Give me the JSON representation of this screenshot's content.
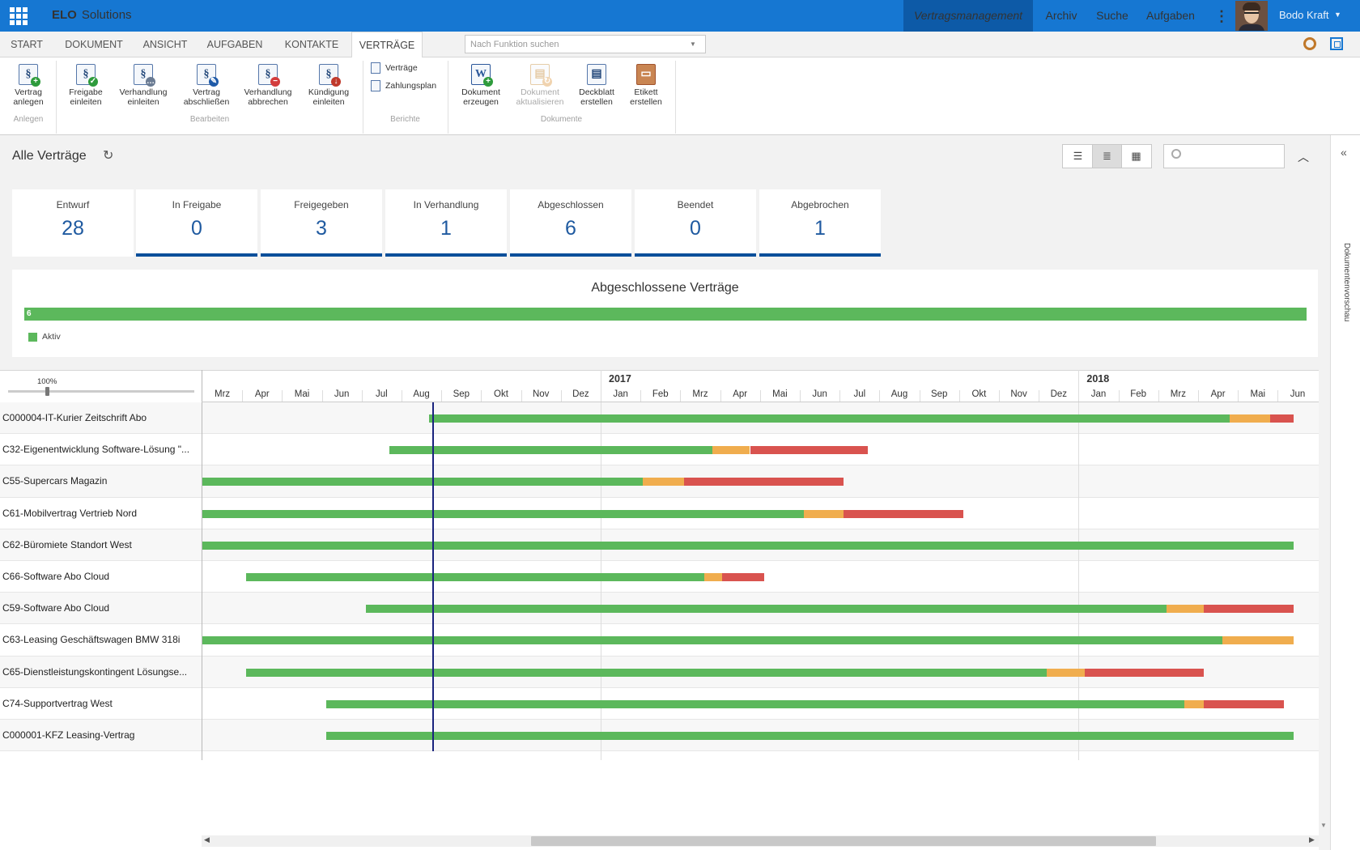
{
  "app": {
    "brand_bold": "ELO",
    "brand_rest": "Solutions",
    "nav": [
      "Vertragsmanagement",
      "Archiv",
      "Suche",
      "Aufgaben"
    ],
    "user": "Bodo Kraft"
  },
  "tabs": [
    "START",
    "DOKUMENT",
    "ANSICHT",
    "AUFGABEN",
    "KONTAKTE",
    "VERTRÄGE"
  ],
  "active_tab": "VERTRÄGE",
  "function_search_placeholder": "Nach Funktion suchen",
  "ribbon": {
    "buttons": [
      {
        "l1": "Vertrag",
        "l2": "anlegen",
        "icon": "contract-add-icon"
      },
      {
        "l1": "Freigabe",
        "l2": "einleiten",
        "icon": "approval-icon"
      },
      {
        "l1": "Verhandlung",
        "l2": "einleiten",
        "icon": "negotiation-icon"
      },
      {
        "l1": "Vertrag",
        "l2": "abschließen",
        "icon": "contract-sign-icon"
      },
      {
        "l1": "Verhandlung",
        "l2": "abbrechen",
        "icon": "negotiation-cancel-icon"
      },
      {
        "l1": "Kündigung",
        "l2": "einleiten",
        "icon": "termination-icon"
      },
      {
        "l1": "Dokument",
        "l2": "erzeugen",
        "icon": "word-document-icon"
      },
      {
        "l1": "Dokument",
        "l2": "aktualisieren",
        "icon": "document-refresh-icon",
        "disabled": true
      },
      {
        "l1": "Deckblatt",
        "l2": "erstellen",
        "icon": "cover-sheet-icon"
      },
      {
        "l1": "Etikett",
        "l2": "erstellen",
        "icon": "label-icon"
      }
    ],
    "reports": [
      "Verträge",
      "Zahlungsplan"
    ],
    "groups": [
      "Anlegen",
      "Bearbeiten",
      "Berichte",
      "Dokumente"
    ]
  },
  "page_title": "Alle Verträge",
  "status_cards": [
    {
      "label": "Entwurf",
      "count": "28"
    },
    {
      "label": "In Freigabe",
      "count": "0"
    },
    {
      "label": "Freigegeben",
      "count": "3"
    },
    {
      "label": "In Verhandlung",
      "count": "1"
    },
    {
      "label": "Abgeschlossen",
      "count": "6"
    },
    {
      "label": "Beendet",
      "count": "0"
    },
    {
      "label": "Abgebrochen",
      "count": "1"
    }
  ],
  "summary": {
    "title": "Abgeschlossene Verträge",
    "value": "6",
    "legend": "Aktiv",
    "color": "#5cb85c"
  },
  "side_panel_label": "Dokumentenvorschau",
  "gantt": {
    "zoom": "100%",
    "years": [
      "2017",
      "2018"
    ],
    "months": [
      "Mrz",
      "Apr",
      "Mai",
      "Jun",
      "Jul",
      "Aug",
      "Sep",
      "Okt",
      "Nov",
      "Dez",
      "Jan",
      "Feb",
      "Mrz",
      "Apr",
      "Mai",
      "Jun",
      "Jul",
      "Aug",
      "Sep",
      "Okt",
      "Nov",
      "Dez",
      "Jan",
      "Feb",
      "Mrz",
      "Apr",
      "Mai",
      "Jun"
    ],
    "colors": {
      "active": "#5cb85c",
      "warning": "#f0ad4e",
      "expired": "#d9534f"
    },
    "rows": [
      {
        "name": "C000004-IT-Kurier Zeitschrift Abo",
        "start": 5.7,
        "warn": 25.8,
        "end": 26.8,
        "finish": 27.6
      },
      {
        "name": "C32-Eigenentwicklung Software-Lösung \"...",
        "start": 4.7,
        "warn": 12.8,
        "end": 13.75,
        "finish": 16.7
      },
      {
        "name": "C55-Supercars Magazin",
        "start": 0,
        "warn": 11.05,
        "end": 12.1,
        "finish": 16.1
      },
      {
        "name": "C61-Mobilvertrag Vertrieb Nord",
        "start": 0,
        "warn": 15.1,
        "end": 16.1,
        "finish": 19.1
      },
      {
        "name": "C62-Büromiete Standort West",
        "start": 0,
        "warn": 27.6,
        "end": 27.6,
        "finish": 27.6
      },
      {
        "name": "C66-Software Abo Cloud",
        "start": 1.1,
        "warn": 12.6,
        "end": 13.05,
        "finish": 14.1
      },
      {
        "name": "C59-Software Abo Cloud",
        "start": 4.1,
        "warn": 24.2,
        "end": 25.15,
        "finish": 27.6
      },
      {
        "name": "C63-Leasing Geschäftswagen BMW 318i",
        "start": 0,
        "warn": 25.6,
        "end": 27.6,
        "finish": 27.6
      },
      {
        "name": "C65-Dienstleistungskontingent Lösungse...",
        "start": 1.1,
        "warn": 21.2,
        "end": 22.15,
        "finish": 25.15
      },
      {
        "name": "C74-Supportvertrag West",
        "start": 3.1,
        "warn": 24.65,
        "end": 25.15,
        "finish": 27.15
      },
      {
        "name": "C000001-KFZ Leasing-Vertrag",
        "start": 3.1,
        "warn": 27.6,
        "end": 27.6,
        "finish": 27.6
      }
    ],
    "today_month": 5.8
  }
}
